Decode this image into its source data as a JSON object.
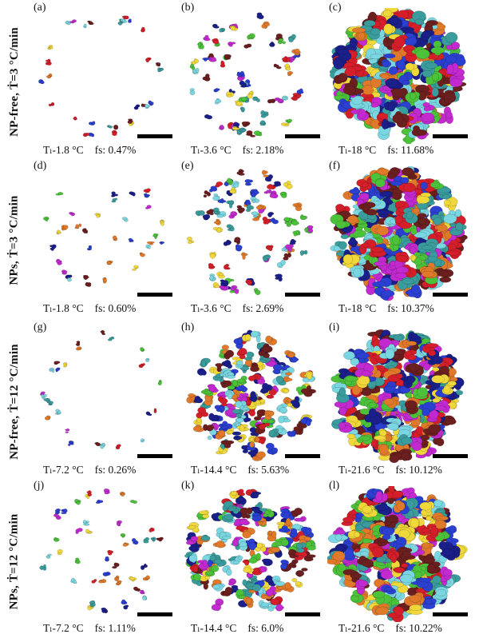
{
  "rows": [
    {
      "label": "NP-free, Ṫ=3 °C/min"
    },
    {
      "label": "NPs, Ṫ=3 °C/min"
    },
    {
      "label": "NP-free, Ṫ=12 °C/min"
    },
    {
      "label": "NPs, Ṫ=12 °C/min"
    }
  ],
  "panels": [
    {
      "letter": "(a)",
      "t": "Tₗ-1.8 °C",
      "fs": "fs: 0.47%",
      "fill": 0.0047
    },
    {
      "letter": "(b)",
      "t": "Tₗ-3.6 °C",
      "fs": "fs: 2.18%",
      "fill": 0.0218
    },
    {
      "letter": "(c)",
      "t": "Tₗ-18 °C",
      "fs": "fs: 11.68%",
      "fill": 0.1168
    },
    {
      "letter": "(d)",
      "t": "Tₗ-1.8 °C",
      "fs": "fs: 0.60%",
      "fill": 0.006
    },
    {
      "letter": "(e)",
      "t": "Tₗ-3.6 °C",
      "fs": "fs: 2.69%",
      "fill": 0.0269
    },
    {
      "letter": "(f)",
      "t": "Tₗ-18 °C",
      "fs": "fs: 10.37%",
      "fill": 0.1037
    },
    {
      "letter": "(g)",
      "t": "Tₗ-7.2 °C",
      "fs": "fs: 0.26%",
      "fill": 0.0026
    },
    {
      "letter": "(h)",
      "t": "Tₗ-14.4 °C",
      "fs": "fs: 5.63%",
      "fill": 0.0563
    },
    {
      "letter": "(i)",
      "t": "Tₗ-21.6 °C",
      "fs": "fs: 10.12%",
      "fill": 0.1012
    },
    {
      "letter": "(j)",
      "t": "Tₗ-7.2 °C",
      "fs": "fs: 1.11%",
      "fill": 0.0111
    },
    {
      "letter": "(k)",
      "t": "Tₗ-14.4 °C",
      "fs": "fs: 6.0%",
      "fill": 0.06
    },
    {
      "letter": "(l)",
      "t": "Tₗ-21.6 °C",
      "fs": "fs: 10.22%",
      "fill": 0.1022
    }
  ],
  "colors": [
    "#2b3fd1",
    "#d41f2a",
    "#7ad6e0",
    "#f0d83a",
    "#e07a2a",
    "#4cc23a",
    "#c22ad0",
    "#1a1f8a",
    "#6b1f1f",
    "#3a9c9c"
  ]
}
